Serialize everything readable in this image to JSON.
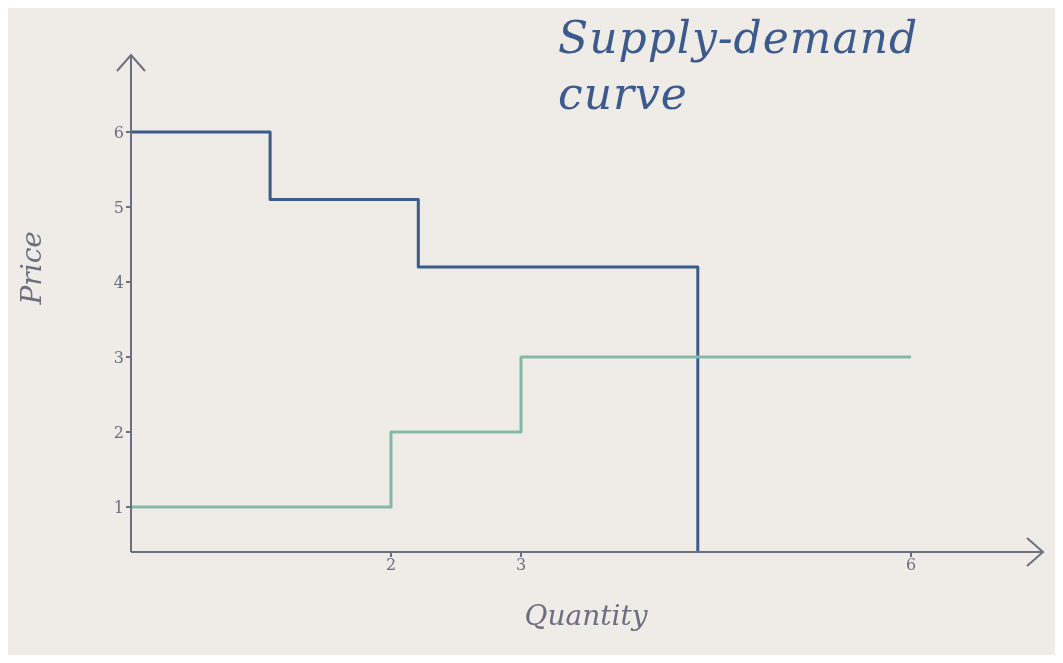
{
  "chart_data": {
    "type": "step",
    "title": "Supply-demand curve",
    "xlabel": "Quantity",
    "ylabel": "Price",
    "xlim": [
      0,
      7
    ],
    "xticks": [
      2,
      3,
      6
    ],
    "ylim": [
      0.4,
      7
    ],
    "yticks": [
      1,
      2,
      3,
      4,
      5,
      6
    ],
    "grid": false,
    "legend": false,
    "marker": "none",
    "line_style": "solid",
    "series": [
      {
        "color": "#3d5a8c",
        "x": [
          0,
          1.07,
          2.21,
          4.36
        ],
        "values": [
          6,
          5.1,
          4.2,
          0.4
        ]
      },
      {
        "color": "#86b8a8",
        "x": [
          0,
          2,
          3,
          6
        ],
        "values": [
          1,
          2,
          3,
          3
        ]
      }
    ]
  }
}
